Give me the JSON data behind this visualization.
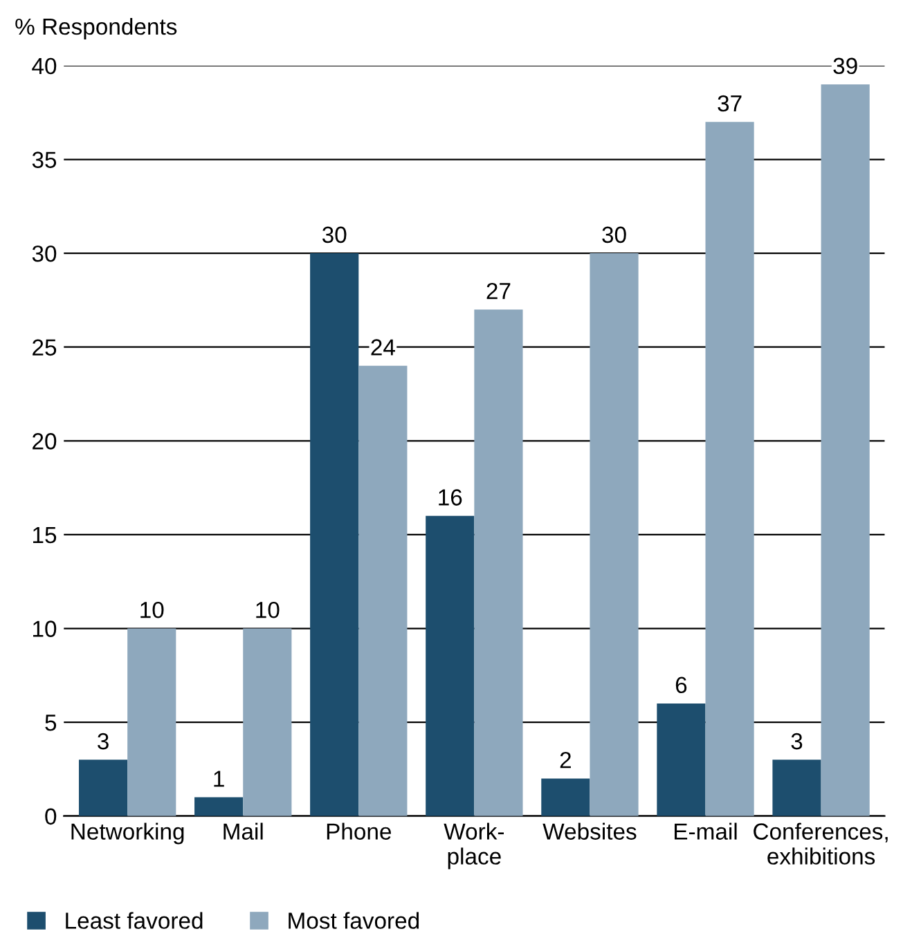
{
  "chart_data": {
    "type": "bar",
    "ylabel": "% Respondents",
    "categories": [
      "Networking",
      "Mail",
      "Phone",
      "Work-\nplace",
      "Websites",
      "E-mail",
      "Conferences,\nexhibitions"
    ],
    "series": [
      {
        "name": "Least favored",
        "color": "#1d4e6e",
        "values": [
          3,
          1,
          30,
          16,
          2,
          6,
          3
        ]
      },
      {
        "name": "Most favored",
        "color": "#8ea8bd",
        "values": [
          10,
          10,
          24,
          27,
          30,
          37,
          39
        ]
      }
    ],
    "ylim": [
      0,
      40
    ],
    "yticks": [
      0,
      5,
      10,
      15,
      20,
      25,
      30,
      35,
      40
    ],
    "grid": "y",
    "legend": "bottom",
    "data_labels": true
  }
}
